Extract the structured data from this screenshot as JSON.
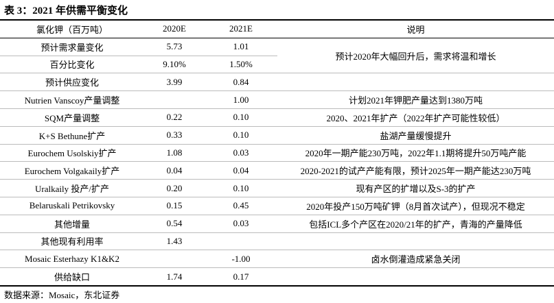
{
  "title": "表 3：2021 年供需平衡变化",
  "table": {
    "header": [
      "氯化钾（百万吨）",
      "2020E",
      "2021E",
      "说明"
    ],
    "rows": [
      {
        "item": "预计需求量变化",
        "y2020": "5.73",
        "y2021": "1.01",
        "note": "预计2020年大幅回升后，需求将温和增长",
        "note_rows": 2
      },
      {
        "item": "百分比变化",
        "y2020": "9.10%",
        "y2021": "1.50%"
      },
      {
        "item": "预计供应变化",
        "y2020": "3.99",
        "y2021": "0.84"
      },
      {
        "item": "Nutrien Vanscoy产量调整",
        "y2021": "1.00",
        "note": "计划2021年钾肥产量达到1380万吨"
      },
      {
        "item": "SQM产量调整",
        "y2020": "0.22",
        "y2021": "0.10",
        "note": "2020、2021年扩产（2022年扩产可能性较低）"
      },
      {
        "item": "K+S Bethune扩产",
        "y2020": "0.33",
        "y2021": "0.10",
        "note": "盐湖产量缓慢提升"
      },
      {
        "item": "Eurochem Usolskiy扩产",
        "y2020": "1.08",
        "y2021": "0.03",
        "note": "2020年一期产能230万吨，2022年1.1期将提升50万吨产能"
      },
      {
        "item": "Eurochem Volgakaily扩产",
        "y2020": "0.04",
        "y2021": "0.04",
        "note": "2020-2021的试产产能有限，预计2025年一期产能达230万吨"
      },
      {
        "item": "Uralkaily 投产/扩产",
        "y2020": "0.20",
        "y2021": "0.10",
        "note": "现有产区的扩增以及S-3的扩产"
      },
      {
        "item": "Belaruskali Petrikovsky",
        "y2020": "0.15",
        "y2021": "0.45",
        "note": "2020年投产150万吨矿钾（8月首次试产），但现况不稳定"
      },
      {
        "item": "其他增量",
        "y2020": "0.54",
        "y2021": "0.03",
        "note": "包括ICL多个产区在2020/21年的扩产，青海的产量降低"
      },
      {
        "item": "其他现有利用率",
        "y2020": "1.43"
      },
      {
        "item": "Mosaic Esterhazy K1&K2",
        "y2021": "-1.00",
        "note": "卤水倒灌造成紧急关闭"
      },
      {
        "item": "供给缺口",
        "y2020": "1.74",
        "y2021": "0.17"
      }
    ]
  },
  "source": "数据来源：Mosaic，东北证券"
}
